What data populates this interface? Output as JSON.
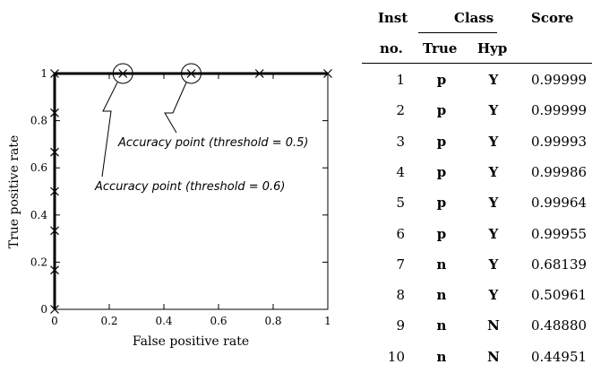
{
  "chart_data": {
    "type": "scatter",
    "xlabel": "False positive rate",
    "ylabel": "True positive rate",
    "xlim": [
      0,
      1
    ],
    "ylim": [
      0,
      1
    ],
    "xticks": [
      "0",
      "0.2",
      "0.4",
      "0.6",
      "0.8",
      "1"
    ],
    "yticks": [
      "0",
      "0.2",
      "0.4",
      "0.6",
      "0.8",
      "1"
    ],
    "grid": false,
    "roc_points": [
      {
        "x": 0,
        "y": 0
      },
      {
        "x": 0,
        "y": 0.1667
      },
      {
        "x": 0,
        "y": 0.3333
      },
      {
        "x": 0,
        "y": 0.5
      },
      {
        "x": 0,
        "y": 0.6667
      },
      {
        "x": 0,
        "y": 0.8333
      },
      {
        "x": 0,
        "y": 1
      },
      {
        "x": 0.25,
        "y": 1
      },
      {
        "x": 0.5,
        "y": 1
      },
      {
        "x": 0.75,
        "y": 1
      },
      {
        "x": 1,
        "y": 1
      }
    ],
    "annotations": [
      {
        "text": "Accuracy point (threshold = 0.5)",
        "x": 0.5,
        "y": 1
      },
      {
        "text": "Accuracy point (threshold = 0.6)",
        "x": 0.25,
        "y": 1
      }
    ]
  },
  "table": {
    "header_inst_top": "Inst",
    "header_inst_bottom": "no.",
    "header_class": "Class",
    "header_true": "True",
    "header_hyp": "Hyp",
    "header_score": "Score",
    "rows": [
      {
        "no": "1",
        "true": "p",
        "hyp": "Y",
        "score": "0.99999"
      },
      {
        "no": "2",
        "true": "p",
        "hyp": "Y",
        "score": "0.99999"
      },
      {
        "no": "3",
        "true": "p",
        "hyp": "Y",
        "score": "0.99993"
      },
      {
        "no": "4",
        "true": "p",
        "hyp": "Y",
        "score": "0.99986"
      },
      {
        "no": "5",
        "true": "p",
        "hyp": "Y",
        "score": "0.99964"
      },
      {
        "no": "6",
        "true": "p",
        "hyp": "Y",
        "score": "0.99955"
      },
      {
        "no": "7",
        "true": "n",
        "hyp": "Y",
        "score": "0.68139"
      },
      {
        "no": "8",
        "true": "n",
        "hyp": "Y",
        "score": "0.50961"
      },
      {
        "no": "9",
        "true": "n",
        "hyp": "N",
        "score": "0.48880"
      },
      {
        "no": "10",
        "true": "n",
        "hyp": "N",
        "score": "0.44951"
      }
    ]
  }
}
